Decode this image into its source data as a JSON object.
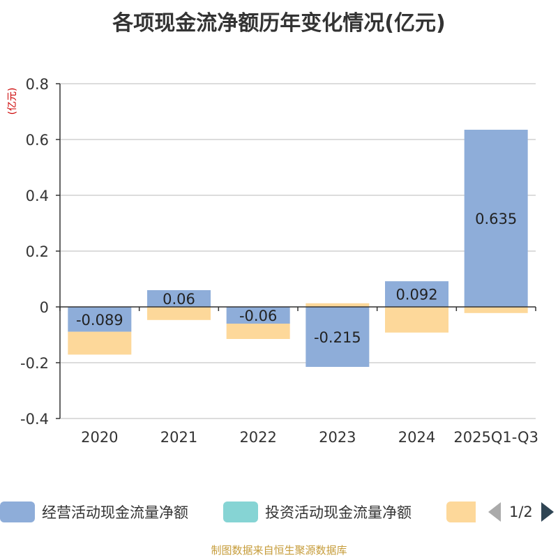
{
  "chart_data": {
    "type": "bar",
    "stacked": true,
    "title": "各项现金流净额历年变化情况(亿元)",
    "ylabel": "(亿元)",
    "xlabel": "",
    "categories": [
      "2020",
      "2021",
      "2022",
      "2023",
      "2024",
      "2025Q1-Q3"
    ],
    "ylim": [
      -0.4,
      0.8
    ],
    "yticks": [
      "-0.4",
      "-0.2",
      "0",
      "0.2",
      "0.4",
      "0.6",
      "0.8"
    ],
    "ytick_values": [
      -0.4,
      -0.2,
      0,
      0.2,
      0.4,
      0.6,
      0.8
    ],
    "grid": true,
    "legend_position": "bottom",
    "series": [
      {
        "name": "经营活动现金流量净额",
        "color": "#8eadd9",
        "values": [
          -0.089,
          0.06,
          -0.06,
          -0.215,
          0.092,
          0.635
        ],
        "labels": [
          "-0.089",
          "0.06",
          "-0.06",
          "-0.215",
          "0.092",
          "0.635"
        ]
      },
      {
        "name": "投资活动现金流量净额",
        "color": "#86d4d4",
        "values": [
          0,
          0,
          0,
          0,
          0,
          0
        ]
      },
      {
        "name": "",
        "color": "#fdd89a",
        "values": [
          -0.082,
          -0.047,
          -0.055,
          0.013,
          -0.092,
          -0.022
        ]
      }
    ]
  },
  "legend": {
    "page_text": "1/2"
  },
  "source_note": "制图数据来自恒生聚源数据库"
}
